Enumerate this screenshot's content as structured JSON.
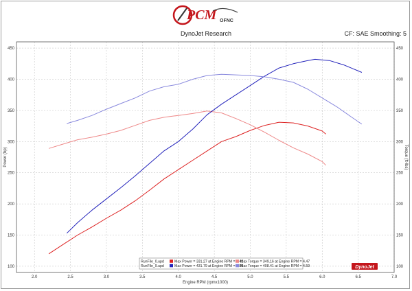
{
  "header": {
    "logo_text": "PCM",
    "logo_sub": "OFNC",
    "title": "DynoJet Research",
    "right": "CF: SAE Smoothing: 5"
  },
  "chart_data": {
    "type": "line",
    "xlabel": "Engine RPM (rpmx1000)",
    "ylabel_left": "Power (hp)",
    "ylabel_right": "Torque (ft-lbs)",
    "xlim": [
      1.75,
      7.0
    ],
    "ylim": [
      90,
      460
    ],
    "x_ticks": [
      "2.0",
      "2.5",
      "3.0",
      "3.5",
      "4.0",
      "4.5",
      "5.0",
      "5.5",
      "6.0",
      "6.5",
      "7.0"
    ],
    "y_ticks": [
      "100",
      "150",
      "200",
      "250",
      "300",
      "350",
      "400",
      "450"
    ],
    "grid": true,
    "series": [
      {
        "name": "RunFile_0.upd Max Power = 331.27 at Engine RPM = 5.41",
        "kind": "power",
        "color": "#dd2222",
        "x": [
          2.2,
          2.4,
          2.6,
          2.8,
          3.0,
          3.2,
          3.4,
          3.6,
          3.8,
          4.0,
          4.2,
          4.4,
          4.6,
          4.8,
          5.0,
          5.2,
          5.4,
          5.6,
          5.8,
          6.0,
          6.05
        ],
        "y": [
          120,
          135,
          150,
          163,
          177,
          190,
          205,
          222,
          240,
          255,
          270,
          285,
          300,
          308,
          318,
          326,
          331,
          330,
          325,
          317,
          312
        ]
      },
      {
        "name": "RunFile_0.upd Max Torque = 349.16 at Engine RPM = 4.47",
        "kind": "torque",
        "color": "#ee8888",
        "x": [
          2.2,
          2.4,
          2.6,
          2.8,
          3.0,
          3.2,
          3.4,
          3.6,
          3.8,
          4.0,
          4.2,
          4.4,
          4.6,
          4.8,
          5.0,
          5.2,
          5.4,
          5.6,
          5.8,
          6.0,
          6.05
        ],
        "y": [
          289,
          296,
          303,
          307,
          312,
          318,
          326,
          334,
          339,
          342,
          345,
          349,
          346,
          337,
          327,
          315,
          302,
          290,
          280,
          268,
          262
        ]
      },
      {
        "name": "RunFile_9.upd Max Power = 431.79 at Engine RPM = 5.89",
        "kind": "power",
        "color": "#2222bb",
        "x": [
          2.45,
          2.6,
          2.8,
          3.0,
          3.2,
          3.4,
          3.6,
          3.8,
          4.0,
          4.2,
          4.4,
          4.6,
          4.8,
          5.0,
          5.2,
          5.4,
          5.6,
          5.8,
          5.9,
          6.1,
          6.3,
          6.55
        ],
        "y": [
          153,
          170,
          190,
          208,
          226,
          245,
          265,
          285,
          300,
          320,
          343,
          360,
          375,
          390,
          405,
          418,
          425,
          430,
          432,
          430,
          423,
          411
        ]
      },
      {
        "name": "RunFile_9.upd Max Torque = 408.41 at Engine RPM = 4.59",
        "kind": "torque",
        "color": "#8888dd",
        "x": [
          2.45,
          2.6,
          2.8,
          3.0,
          3.2,
          3.4,
          3.6,
          3.8,
          4.0,
          4.2,
          4.4,
          4.6,
          4.8,
          5.0,
          5.2,
          5.4,
          5.6,
          5.8,
          6.0,
          6.2,
          6.4,
          6.55
        ],
        "y": [
          329,
          334,
          342,
          352,
          361,
          370,
          381,
          388,
          392,
          400,
          406,
          408,
          407,
          406,
          404,
          400,
          395,
          384,
          370,
          356,
          340,
          328
        ]
      }
    ],
    "legend": {
      "position": "bottom-right",
      "rows": [
        {
          "file": "RunFile_0.upd",
          "power": "Max Power = 331.27 at Engine RPM = 5.41",
          "torque": "Max Torque = 349.16 at Engine RPM = 4.47",
          "power_color": "#dd2222",
          "torque_color": "#ee8888"
        },
        {
          "file": "RunFile_9.upd",
          "power": "Max Power = 431.79 at Engine RPM = 5.89",
          "torque": "Max Torque = 408.41 at Engine RPM = 4.59",
          "power_color": "#2222bb",
          "torque_color": "#8888dd"
        }
      ]
    },
    "watermark": "DynoJet"
  }
}
